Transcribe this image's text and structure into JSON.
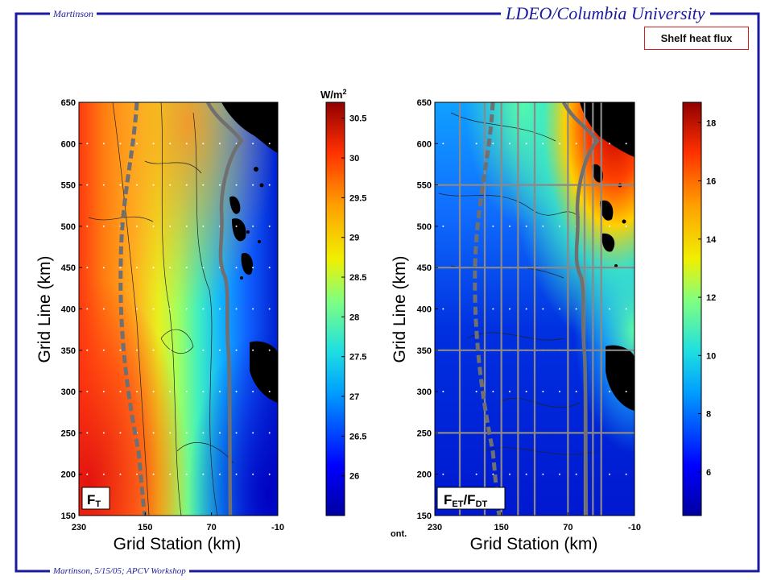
{
  "header": {
    "author": "Martinson",
    "institution": "LDEO/Columbia University",
    "footer": "Martinson, 5/15/05; APCV Workshop",
    "slide_title": "Shelf heat flux",
    "frame_color": "#1a1aa0"
  },
  "chart_data": [
    {
      "type": "heatmap",
      "panel_label_main": "F",
      "panel_label_sub": "T",
      "xlabel": "Grid Station (km)",
      "ylabel": "Grid Line (km)",
      "x_ticks": [
        "230",
        "150",
        "70",
        "-10"
      ],
      "x_tick_values": [
        230,
        150,
        70,
        -10
      ],
      "y_ticks": [
        "650",
        "600",
        "550",
        "500",
        "450",
        "400",
        "350",
        "300",
        "250",
        "200",
        "150"
      ],
      "y_tick_values": [
        650,
        600,
        550,
        500,
        450,
        400,
        350,
        300,
        250,
        200,
        150
      ],
      "xlim": [
        230,
        -10
      ],
      "ylim": [
        150,
        650
      ],
      "colorbar": {
        "units_main": "W/m",
        "units_sup": "2",
        "ticks": [
          "30.5",
          "30",
          "29.5",
          "29",
          "28.5",
          "28",
          "27.5",
          "27",
          "26.5",
          "26"
        ],
        "tick_values": [
          30.5,
          30,
          29.5,
          29,
          28.5,
          28,
          27.5,
          27,
          26.5,
          26
        ],
        "range": [
          25.5,
          30.7
        ]
      },
      "field_description_values": {
        "west_coastal_band": 30.2,
        "mid_shelf": 28.5,
        "inner_shelf": 27.0,
        "south_east": 25.8
      }
    },
    {
      "type": "heatmap",
      "panel_label_main1": "F",
      "panel_label_sub1": "ET",
      "panel_label_sep": "/F",
      "panel_label_sub2": "DT",
      "xlabel": "Grid Station (km)",
      "ylabel": "Grid Line (km)",
      "x_ticks": [
        "230",
        "150",
        "70",
        "-10"
      ],
      "x_tick_values": [
        230,
        150,
        70,
        -10
      ],
      "y_ticks": [
        "650",
        "600",
        "550",
        "500",
        "450",
        "400",
        "350",
        "300",
        "250",
        "200",
        "150"
      ],
      "y_tick_values": [
        650,
        600,
        550,
        500,
        450,
        400,
        350,
        300,
        250,
        200,
        150
      ],
      "xlim": [
        230,
        -10
      ],
      "ylim": [
        150,
        650
      ],
      "grid_lines_x": [
        200,
        170,
        150,
        130,
        110,
        70,
        50,
        40,
        30
      ],
      "grid_lines_y": [
        550,
        450,
        350,
        250
      ],
      "colorbar": {
        "ticks": [
          "18",
          "16",
          "14",
          "12",
          "10",
          "8",
          "6"
        ],
        "tick_values": [
          18,
          16,
          14,
          12,
          10,
          8,
          6
        ],
        "range": [
          4.5,
          18.7
        ]
      },
      "note_text": "ont."
    }
  ]
}
